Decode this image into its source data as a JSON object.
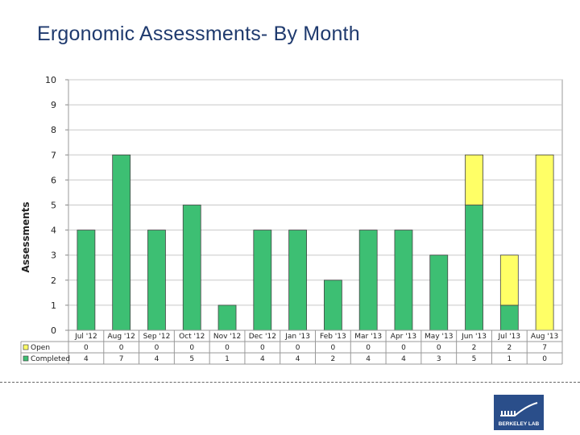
{
  "chart_data": {
    "type": "bar",
    "stacked": true,
    "title": "Ergonomic Assessments- By Month",
    "ylabel": "Assessments",
    "xlabel": "",
    "ylim": [
      0,
      10
    ],
    "yticks": [
      0,
      1,
      2,
      3,
      4,
      5,
      6,
      7,
      8,
      9,
      10
    ],
    "grid": true,
    "categories": [
      "Jul '12",
      "Aug '12",
      "Sep '12",
      "Oct '12",
      "Nov '12",
      "Dec '12",
      "Jan '13",
      "Feb '13",
      "Mar '13",
      "Apr '13",
      "May '13",
      "Jun '13",
      "Jul '13",
      "Aug '13"
    ],
    "series": [
      {
        "name": "Open",
        "color": "#ffff66",
        "values": [
          0,
          0,
          0,
          0,
          0,
          0,
          0,
          0,
          0,
          0,
          0,
          2,
          2,
          7
        ]
      },
      {
        "name": "Completed",
        "color": "#3dbf73",
        "values": [
          4,
          7,
          4,
          5,
          1,
          4,
          4,
          2,
          4,
          4,
          3,
          5,
          1,
          0
        ]
      }
    ],
    "data_table": true
  },
  "footer": {
    "logo_text": "BERKELEY LAB"
  }
}
